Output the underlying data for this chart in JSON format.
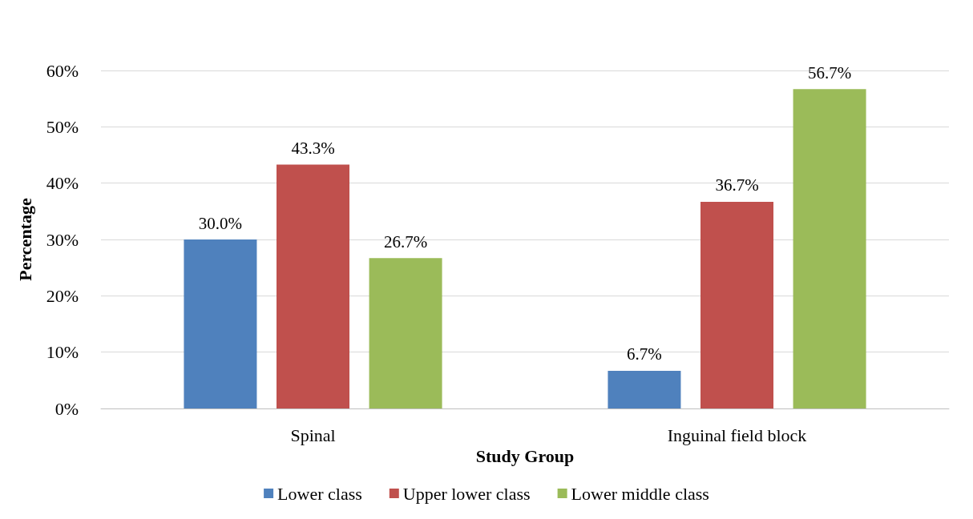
{
  "chart_data": {
    "type": "bar",
    "xlabel": "Study Group",
    "ylabel": "Percentage",
    "categories": [
      "Spinal",
      "Inguinal field block"
    ],
    "series": [
      {
        "name": "Lower class",
        "color": "#4f81bd",
        "values": [
          30.0,
          6.7
        ],
        "value_labels": [
          "30.0%",
          "6.7%"
        ]
      },
      {
        "name": "Upper lower class",
        "color": "#c0504d",
        "values": [
          43.3,
          36.7
        ],
        "value_labels": [
          "43.3%",
          "36.7%"
        ]
      },
      {
        "name": "Lower middle class",
        "color": "#9bbb59",
        "values": [
          26.7,
          56.7
        ],
        "value_labels": [
          "26.7%",
          "56.7%"
        ]
      }
    ],
    "ylim": [
      0,
      60
    ],
    "yticks": [
      {
        "value": 0,
        "label": "0%"
      },
      {
        "value": 10,
        "label": "10%"
      },
      {
        "value": 20,
        "label": "20%"
      },
      {
        "value": 30,
        "label": "30%"
      },
      {
        "value": 40,
        "label": "40%"
      },
      {
        "value": 50,
        "label": "50%"
      },
      {
        "value": 60,
        "label": "60%"
      }
    ],
    "grid": "y",
    "legend": "bottom"
  }
}
